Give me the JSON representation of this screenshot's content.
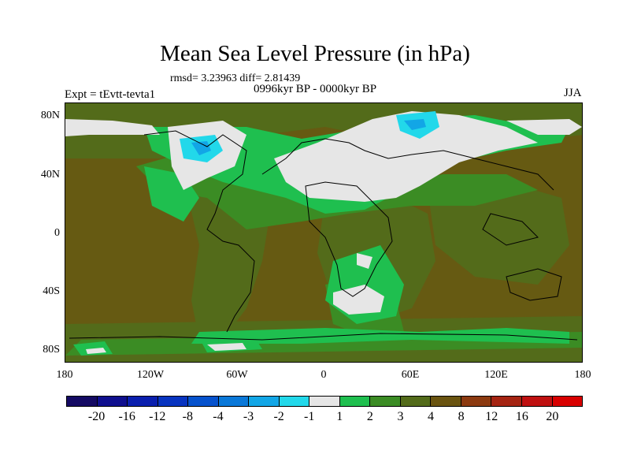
{
  "title": "Mean Sea Level Pressure (in hPa)",
  "stats": "rmsd= 3.23963 diff= 2.81439",
  "period": "0996kyr BP - 0000kyr BP",
  "experiment": "Expt = tEvtt-tevta1",
  "season": "JJA",
  "y_axis_labels": [
    "80N",
    "40N",
    "0",
    "40S",
    "80S"
  ],
  "x_axis_labels": [
    "180",
    "120W",
    "60W",
    "0",
    "60E",
    "120E",
    "180"
  ],
  "colorbar": {
    "labels": [
      "-20",
      "-16",
      "-12",
      "-8",
      "-4",
      "-3",
      "-2",
      "-1",
      "1",
      "2",
      "3",
      "4",
      "8",
      "12",
      "16",
      "20"
    ],
    "colors": [
      "#140a63",
      "#0f0f8e",
      "#0a1fae",
      "#0834c0",
      "#0652cd",
      "#0a78d8",
      "#12a6e6",
      "#22d8ea",
      "#e6e6e6",
      "#1fbf4f",
      "#3b8c24",
      "#536b1a",
      "#6a5410",
      "#8c3a10",
      "#a52412",
      "#bf1010",
      "#d80000"
    ]
  },
  "map_colors": {
    "background": "#665a12",
    "olive": "#536b1a",
    "midgreen": "#3b8c24",
    "green": "#1fbf4f",
    "white": "#e6e6e6",
    "cyan": "#22d8ea",
    "blue": "#12a6e6",
    "brown": "#6a5410"
  }
}
